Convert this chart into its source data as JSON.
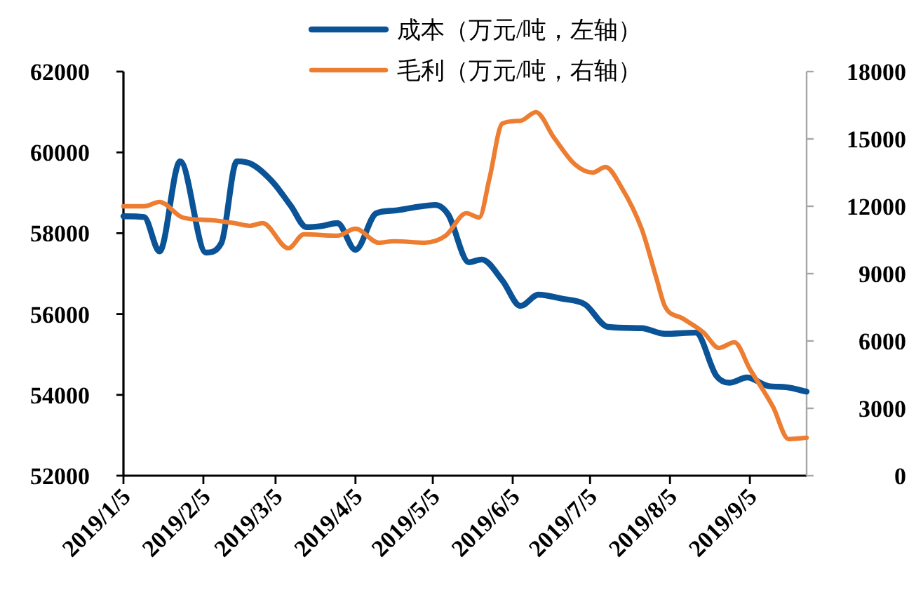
{
  "chart_data": {
    "type": "line",
    "legend": "top",
    "xlim": [
      "2019-01-05",
      "2019-09-27"
    ],
    "xticks": [
      {
        "value": "2019-01-05",
        "label": "2019/1/5"
      },
      {
        "value": "2019-02-05",
        "label": "2019/2/5"
      },
      {
        "value": "2019-03-05",
        "label": "2019/3/5"
      },
      {
        "value": "2019-04-05",
        "label": "2019/4/5"
      },
      {
        "value": "2019-05-05",
        "label": "2019/5/5"
      },
      {
        "value": "2019-06-05",
        "label": "2019/6/5"
      },
      {
        "value": "2019-07-05",
        "label": "2019/7/5"
      },
      {
        "value": "2019-08-05",
        "label": "2019/8/5"
      },
      {
        "value": "2019-09-05",
        "label": "2019/9/5"
      }
    ],
    "ylim": [
      52000,
      62000
    ],
    "yticks": [
      52000,
      54000,
      56000,
      58000,
      60000,
      62000
    ],
    "y2lim": [
      0,
      18000
    ],
    "y2ticks": [
      0,
      3000,
      6000,
      9000,
      12000,
      15000,
      18000
    ],
    "series": [
      {
        "name": "成本（万元/吨，左轴）",
        "color": "#0a5396",
        "x": [
          "2019-01-05",
          "2019-01-13",
          "2019-01-19",
          "2019-01-27",
          "2019-02-06",
          "2019-02-12",
          "2019-02-18",
          "2019-02-24",
          "2019-03-04",
          "2019-03-11",
          "2019-03-17",
          "2019-03-23",
          "2019-03-29",
          "2019-04-05",
          "2019-04-13",
          "2019-04-20",
          "2019-04-27",
          "2019-05-06",
          "2019-05-11",
          "2019-05-19",
          "2019-05-24",
          "2019-06-01",
          "2019-06-08",
          "2019-06-15",
          "2019-06-24",
          "2019-07-03",
          "2019-07-12",
          "2019-07-25",
          "2019-08-03",
          "2019-08-15",
          "2019-08-23",
          "2019-08-28",
          "2019-09-04",
          "2019-09-12",
          "2019-09-19",
          "2019-09-27"
        ],
        "values": [
          58420,
          58400,
          57550,
          59780,
          57520,
          57760,
          59780,
          59700,
          59260,
          58670,
          58150,
          58180,
          58250,
          57590,
          58490,
          58560,
          58630,
          58700,
          58460,
          57280,
          57350,
          56830,
          56200,
          56480,
          56380,
          56240,
          55680,
          55650,
          55510,
          55540,
          54470,
          54300,
          54430,
          54220,
          54190,
          54080
        ]
      },
      {
        "name": "毛利（万元/吨，右轴）",
        "color": "#ed7d31",
        "axis": "y2",
        "x": [
          "2019-01-05",
          "2019-01-13",
          "2019-01-19",
          "2019-01-28",
          "2019-02-08",
          "2019-02-17",
          "2019-02-23",
          "2019-02-28",
          "2019-03-10",
          "2019-03-16",
          "2019-03-29",
          "2019-04-05",
          "2019-04-14",
          "2019-04-20",
          "2019-05-02",
          "2019-05-10",
          "2019-05-18",
          "2019-05-23",
          "2019-05-27",
          "2019-06-01",
          "2019-06-08",
          "2019-06-14",
          "2019-06-21",
          "2019-06-29",
          "2019-07-06",
          "2019-07-11",
          "2019-07-17",
          "2019-07-25",
          "2019-07-31",
          "2019-08-03",
          "2019-08-10",
          "2019-08-18",
          "2019-08-24",
          "2019-08-30",
          "2019-09-05",
          "2019-09-14",
          "2019-09-20",
          "2019-09-27"
        ],
        "values": [
          12000,
          12000,
          12190,
          11500,
          11380,
          11250,
          11130,
          11250,
          10130,
          10750,
          10690,
          11000,
          10380,
          10440,
          10380,
          10690,
          11690,
          11500,
          13250,
          15690,
          15810,
          16190,
          15060,
          13880,
          13500,
          13750,
          12880,
          11000,
          8690,
          7560,
          7000,
          6380,
          5690,
          5940,
          4750,
          3060,
          1630,
          1690
        ]
      }
    ]
  }
}
